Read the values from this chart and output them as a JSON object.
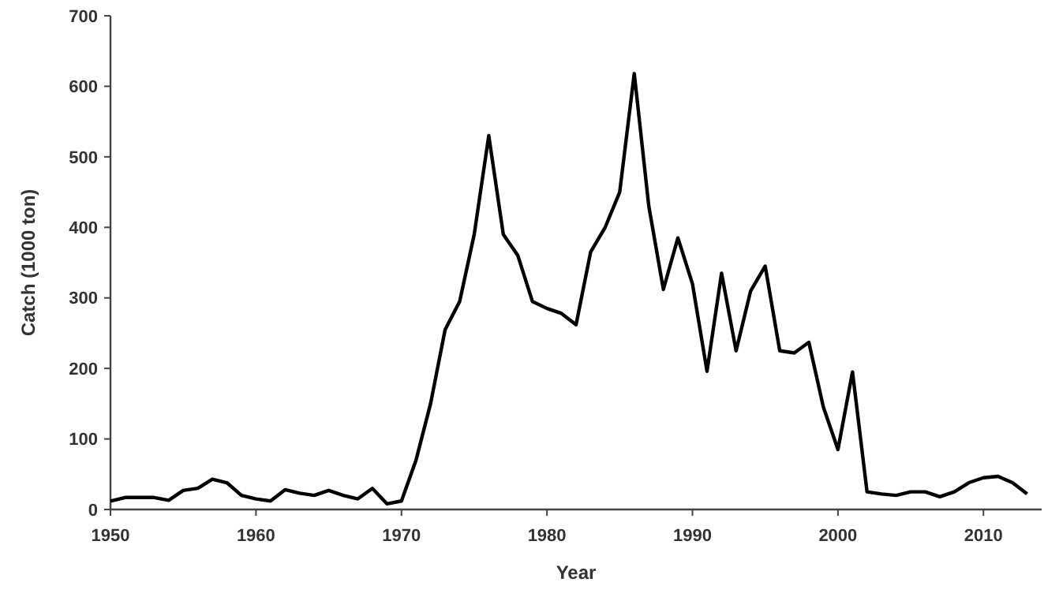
{
  "chart_data": {
    "type": "line",
    "xlabel": "Year",
    "ylabel": "Catch (1000 ton)",
    "x": [
      1950,
      1951,
      1952,
      1953,
      1954,
      1955,
      1956,
      1957,
      1958,
      1959,
      1960,
      1961,
      1962,
      1963,
      1964,
      1965,
      1966,
      1967,
      1968,
      1969,
      1970,
      1971,
      1972,
      1973,
      1974,
      1975,
      1976,
      1977,
      1978,
      1979,
      1980,
      1981,
      1982,
      1983,
      1984,
      1985,
      1986,
      1987,
      1988,
      1989,
      1990,
      1991,
      1992,
      1993,
      1994,
      1995,
      1996,
      1997,
      1998,
      1999,
      2000,
      2001,
      2002,
      2003,
      2004,
      2005,
      2006,
      2007,
      2008,
      2009,
      2010,
      2011,
      2012,
      2013
    ],
    "series": [
      {
        "color": "#000000",
        "values": [
          12,
          17,
          17,
          17,
          13,
          27,
          30,
          43,
          38,
          20,
          15,
          12,
          28,
          23,
          20,
          27,
          20,
          15,
          30,
          8,
          12,
          70,
          150,
          255,
          295,
          390,
          530,
          390,
          360,
          295,
          285,
          278,
          262,
          365,
          400,
          450,
          618,
          430,
          312,
          385,
          320,
          196,
          335,
          225,
          310,
          345,
          225,
          222,
          237,
          145,
          85,
          195,
          25,
          22,
          20,
          25,
          25,
          18,
          25,
          38,
          45,
          47,
          38,
          22
        ]
      }
    ],
    "xlim": [
      1950,
      2014
    ],
    "xticks": [
      1950,
      1960,
      1970,
      1980,
      1990,
      2000,
      2010
    ],
    "ylim": [
      0,
      700
    ],
    "yticks": [
      0,
      100,
      200,
      300,
      400,
      500,
      600,
      700
    ],
    "marker": "none",
    "line_style": "solid"
  }
}
